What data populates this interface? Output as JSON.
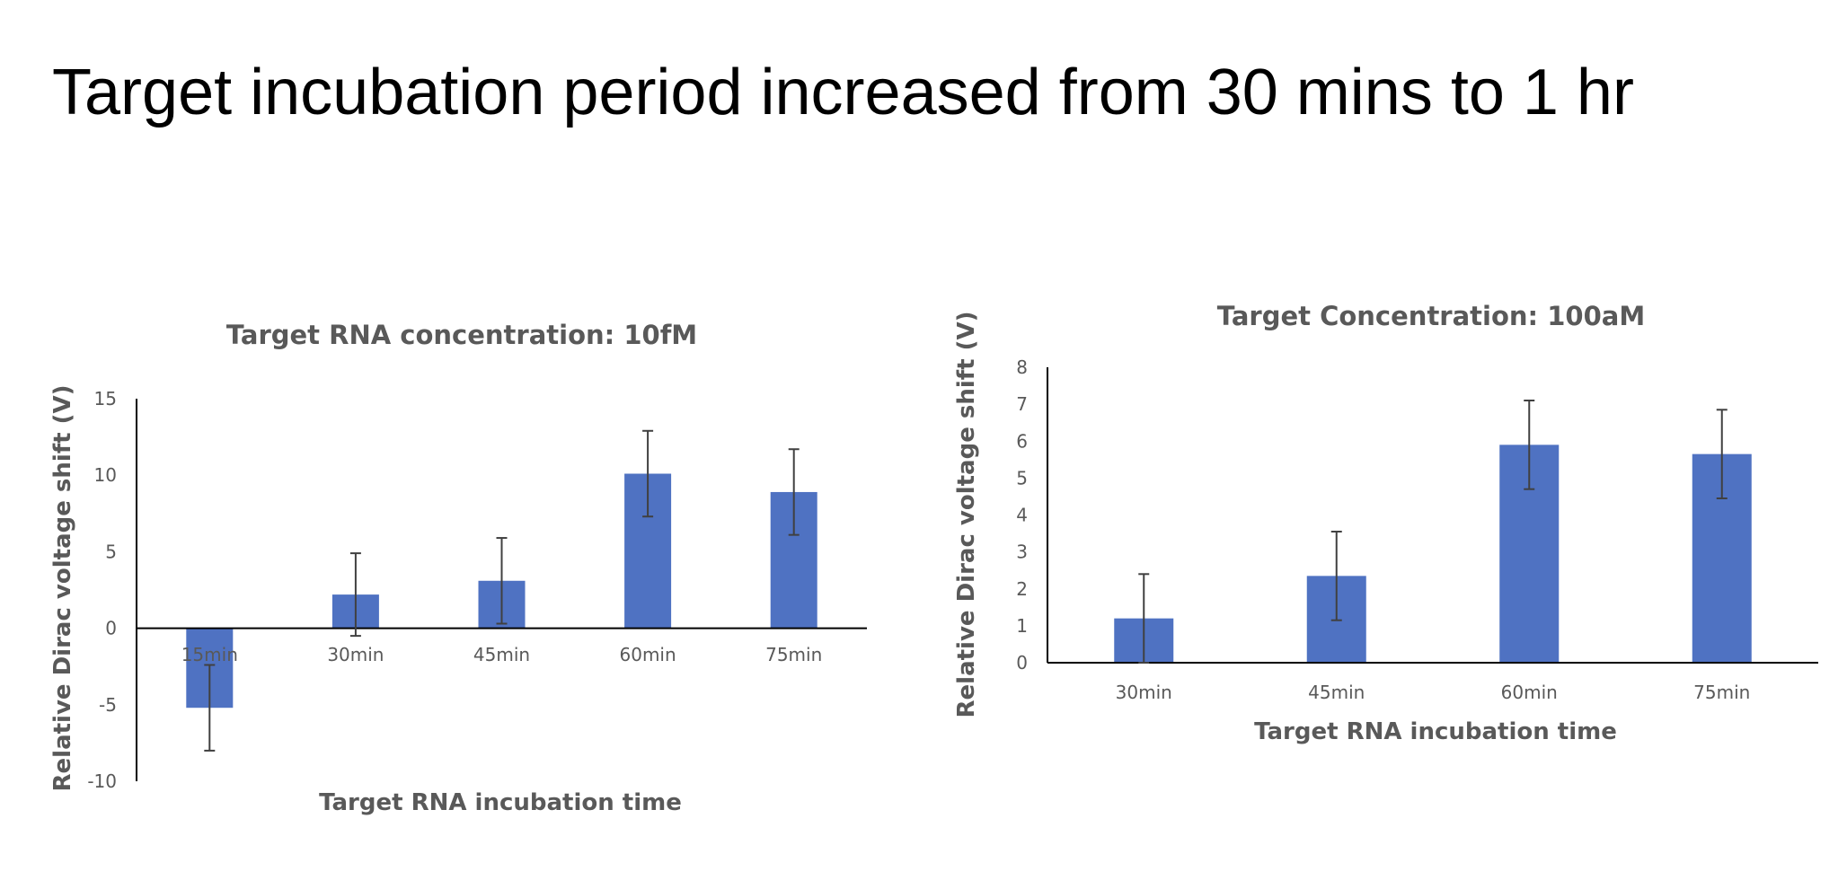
{
  "slide": {
    "title": "Target incubation period increased from 30 mins to 1 hr"
  },
  "colors": {
    "bar": "#4F72C2",
    "axis": "#000000",
    "error": "#404040",
    "text": "#595959"
  },
  "chart_data": [
    {
      "type": "bar",
      "title": "Target RNA concentration: 10fM",
      "xlabel": "Target RNA incubation time",
      "ylabel": "Relative Dirac voltage shift (V)",
      "categories": [
        "15min",
        "30min",
        "45min",
        "60min",
        "75min"
      ],
      "values": [
        -5.2,
        2.2,
        3.1,
        10.1,
        8.9
      ],
      "errors": [
        2.8,
        2.7,
        2.8,
        2.8,
        2.8
      ],
      "ylim": [
        -10,
        15
      ],
      "yticks": [
        -10,
        -5,
        0,
        5,
        10,
        15
      ]
    },
    {
      "type": "bar",
      "title": "Target Concentration: 100aM",
      "xlabel": "Target RNA incubation time",
      "ylabel": "Relative Dirac voltage shift (V)",
      "categories": [
        "30min",
        "45min",
        "60min",
        "75min"
      ],
      "values": [
        1.2,
        2.35,
        5.9,
        5.65
      ],
      "errors": [
        1.2,
        1.2,
        1.2,
        1.2
      ],
      "ylim": [
        0,
        8
      ],
      "yticks": [
        0,
        1,
        2,
        3,
        4,
        5,
        6,
        7,
        8
      ]
    }
  ]
}
